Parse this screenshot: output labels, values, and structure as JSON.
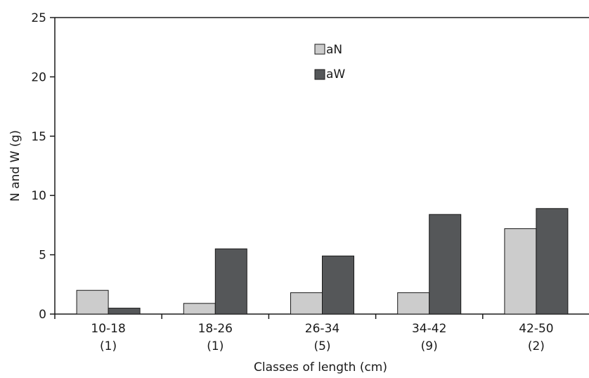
{
  "chart_data": {
    "type": "bar",
    "categories": [
      "10-18",
      "18-26",
      "26-34",
      "34-42",
      "42-50"
    ],
    "category_counts": [
      "(1)",
      "(1)",
      "(5)",
      "(9)",
      "(2)"
    ],
    "series": [
      {
        "name": "aN",
        "values": [
          2.0,
          0.9,
          1.8,
          1.8,
          7.2
        ],
        "color": "#cccccc"
      },
      {
        "name": "aW",
        "values": [
          0.5,
          5.5,
          4.9,
          8.4,
          8.9
        ],
        "color": "#555759"
      }
    ],
    "title": "",
    "xlabel": "Classes of length (cm)",
    "ylabel": "N and W (g)",
    "ylim": [
      0,
      25
    ],
    "yticks": [
      0,
      5,
      10,
      15,
      20,
      25
    ],
    "grid": false,
    "legend_position": "top-center"
  }
}
